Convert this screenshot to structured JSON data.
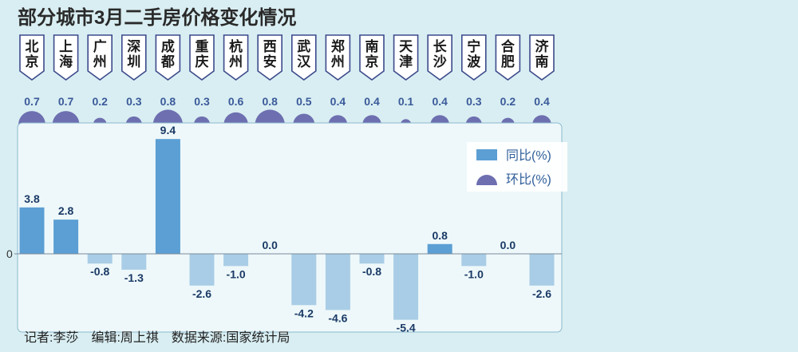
{
  "title": "部分城市3月二手房价格变化情况",
  "colors": {
    "background": "#d9eef2",
    "panel": "#eef8fa",
    "yoy_positive": "#5b9fd4",
    "yoy_negative": "#a9cde6",
    "mom_dot": "#6d6fb0",
    "tag_border": "#3c4a8c"
  },
  "chart_data": {
    "type": "bar",
    "title": "部分城市3月二手房价格变化情况",
    "categories": [
      "北京",
      "上海",
      "广州",
      "深圳",
      "成都",
      "重庆",
      "杭州",
      "西安",
      "武汉",
      "郑州",
      "南京",
      "天津",
      "长沙",
      "宁波",
      "合肥",
      "济南"
    ],
    "category_labels": [
      "北京",
      "上海",
      "广州",
      "深圳",
      "成都",
      "重庆",
      "杭州",
      "西安",
      "武汉",
      "郑州",
      "南京",
      "天津",
      "长沙",
      "宁波",
      "合肥",
      "济南"
    ],
    "series": [
      {
        "name": "同比(%)",
        "type": "bar",
        "values": [
          3.8,
          2.8,
          -0.8,
          -1.3,
          9.4,
          -2.6,
          -1.0,
          0.0,
          -4.2,
          -4.6,
          -0.8,
          -5.4,
          0.8,
          -1.0,
          0.0,
          -2.6
        ]
      },
      {
        "name": "环比(%)",
        "type": "dot",
        "values": [
          0.7,
          0.7,
          0.2,
          0.3,
          0.8,
          0.3,
          0.6,
          0.8,
          0.5,
          0.4,
          0.4,
          0.1,
          0.4,
          0.3,
          0.2,
          0.4
        ]
      }
    ],
    "yoy_labels": [
      "3.8",
      "2.8",
      "-0.8",
      "-1.3",
      "9.4",
      "-2.6",
      "-1.0",
      "0.0",
      "-4.2",
      "-4.6",
      "-0.8",
      "-5.4",
      "0.8",
      "-1.0",
      "0.0",
      "-2.6"
    ],
    "mom_labels": [
      "0.7",
      "0.7",
      "0.2",
      "0.3",
      "0.8",
      "0.3",
      "0.6",
      "0.8",
      "0.5",
      "0.4",
      "0.4",
      "0.1",
      "0.4",
      "0.3",
      "0.2",
      "0.4"
    ],
    "zero_tick_label": "0",
    "ylim": [
      -5.8,
      10.2
    ],
    "legend": {
      "position": "top-right",
      "entries": [
        "同比(%)",
        "环比(%)"
      ]
    },
    "grid": false
  },
  "source_line": "记者:李莎　编辑:周上祺　数据来源:国家统计局"
}
